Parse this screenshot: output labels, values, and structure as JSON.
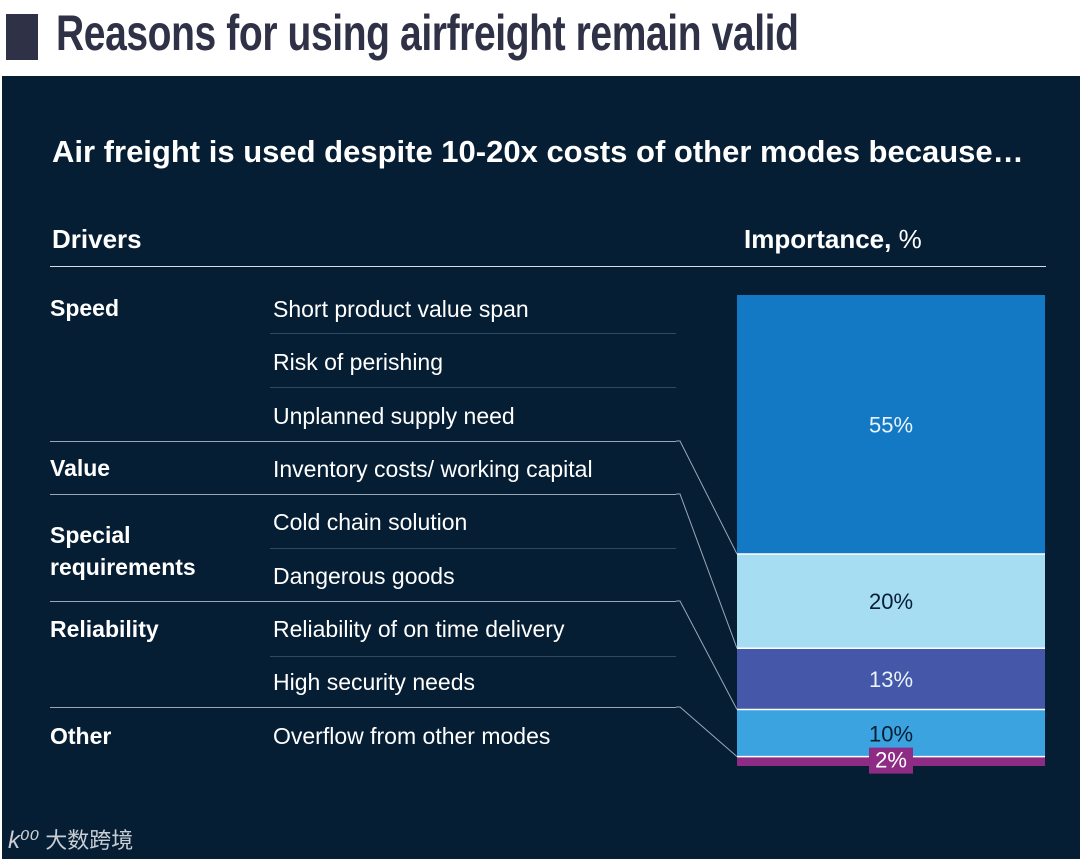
{
  "title": "Reasons for using airfreight remain valid",
  "headline": "Air freight is used despite 10-20x costs of other modes because…",
  "columns": {
    "drivers": "Drivers",
    "importance": "Importance,",
    "importance_unit": "%"
  },
  "categories": [
    "Speed",
    "Value",
    "Special requirements",
    "Reliability",
    "Other"
  ],
  "drivers": [
    "Short product value span",
    "Risk of perishing",
    "Unplanned supply need",
    "Inventory costs/ working capital",
    "Cold chain solution",
    "Dangerous goods",
    "Reliability of on time delivery",
    "High security needs",
    "Overflow from other modes"
  ],
  "chart_data": {
    "type": "bar",
    "stacked": true,
    "title": "Importance, %",
    "categories": [
      "Speed",
      "Value",
      "Special requirements",
      "Reliability",
      "Other"
    ],
    "values": [
      55,
      20,
      13,
      10,
      2
    ],
    "labels": [
      "55%",
      "20%",
      "13%",
      "10%",
      "2%"
    ],
    "colors": [
      "#1479c4",
      "#a6ddf3",
      "#4457a8",
      "#3aa3e0",
      "#8e2b84"
    ],
    "label_colors": [
      "#e8f3fb",
      "#061e33",
      "#e8f3fb",
      "#061e33",
      "#ffffff"
    ],
    "ylim": [
      0,
      100
    ]
  },
  "watermark": {
    "mark": "k⁰⁰",
    "text": "大数跨境"
  }
}
